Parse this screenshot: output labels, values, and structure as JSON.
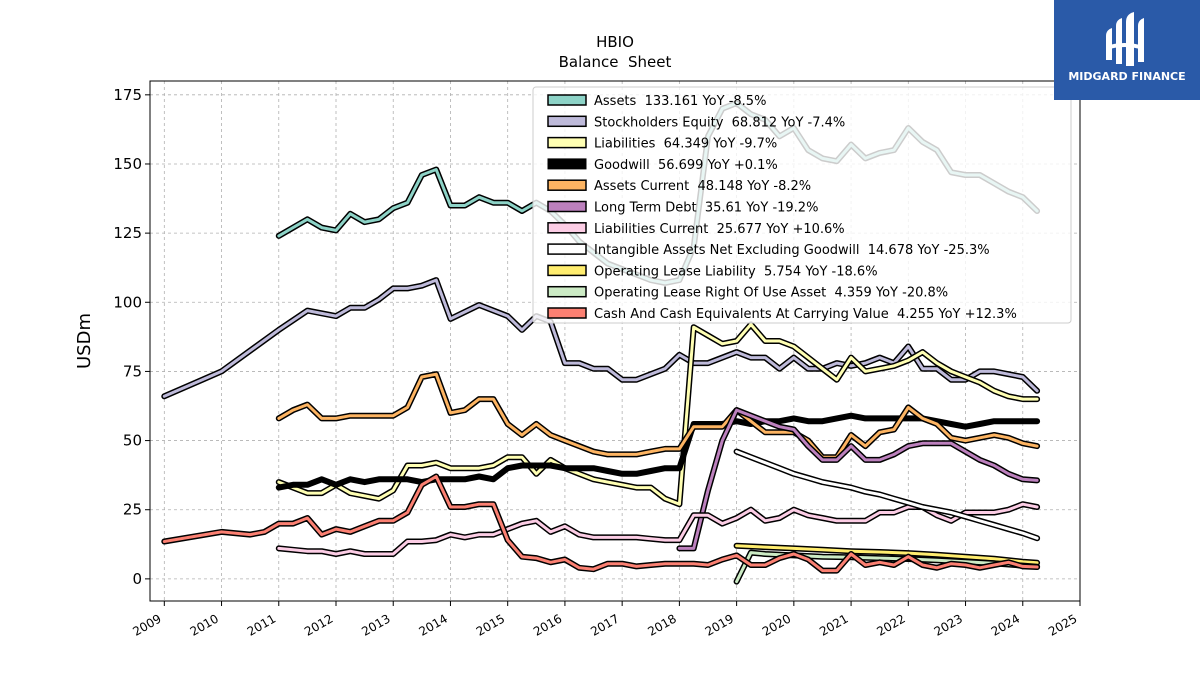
{
  "logo": {
    "text": "MIDGARD FINANCE",
    "color": "#2a5aa8"
  },
  "chart_data": {
    "type": "line",
    "title": "HBIO",
    "subtitle": "Balance  Sheet",
    "xlabel": "",
    "ylabel": "USDm",
    "xlim": [
      2008.75,
      2025
    ],
    "ylim": [
      -8,
      180
    ],
    "grid": true,
    "legend_position": "top-right",
    "x_ticks": [
      "2009",
      "2010",
      "2011",
      "2012",
      "2013",
      "2014",
      "2015",
      "2016",
      "2017",
      "2018",
      "2019",
      "2020",
      "2021",
      "2022",
      "2023",
      "2024",
      "2025"
    ],
    "y_ticks": [
      "0",
      "25",
      "50",
      "75",
      "100",
      "125",
      "150",
      "175"
    ],
    "series": [
      {
        "name": "Assets",
        "legend": "Assets  133.161 YoY -8.5%",
        "color": "#8dd3c7",
        "width": 3,
        "x": [
          2011,
          2011.25,
          2011.5,
          2011.75,
          2012,
          2012.25,
          2012.5,
          2012.75,
          2013,
          2013.25,
          2013.5,
          2013.75,
          2014,
          2014.25,
          2014.5,
          2014.75,
          2015,
          2015.25,
          2015.5,
          2015.75,
          2016,
          2016.25,
          2016.5,
          2016.75,
          2017,
          2017.25,
          2017.5,
          2017.75,
          2018,
          2018.25,
          2018.5,
          2018.75,
          2019,
          2019.25,
          2019.5,
          2019.75,
          2020,
          2020.25,
          2020.5,
          2020.75,
          2021,
          2021.25,
          2021.5,
          2021.75,
          2022,
          2022.25,
          2022.5,
          2022.75,
          2023,
          2023.25,
          2023.5,
          2023.75,
          2024,
          2024.25
        ],
        "y": [
          124,
          127,
          130,
          127,
          126,
          132,
          129,
          130,
          134,
          136,
          146,
          148,
          135,
          135,
          138,
          136,
          136,
          133,
          136,
          133,
          128,
          122,
          118,
          114,
          112,
          110,
          108,
          107,
          108,
          120,
          160,
          170,
          172,
          168,
          166,
          160,
          163,
          155,
          152,
          151,
          157,
          152,
          154,
          155,
          163,
          158,
          155,
          147,
          146,
          146,
          143,
          140,
          138,
          133
        ]
      },
      {
        "name": "Stockholders Equity",
        "legend": "Stockholders Equity  68.812 YoY -7.4%",
        "color": "#bebada",
        "width": 3,
        "x": [
          2009,
          2010,
          2011,
          2011.5,
          2012,
          2012.25,
          2012.5,
          2012.75,
          2013,
          2013.25,
          2013.5,
          2013.75,
          2014,
          2014.5,
          2015,
          2015.25,
          2015.5,
          2015.75,
          2016,
          2016.25,
          2016.5,
          2016.75,
          2017,
          2017.25,
          2017.5,
          2017.75,
          2018,
          2018.25,
          2018.5,
          2018.75,
          2019,
          2019.25,
          2019.5,
          2019.75,
          2020,
          2020.25,
          2020.5,
          2020.75,
          2021,
          2021.25,
          2021.5,
          2021.75,
          2022,
          2022.25,
          2022.5,
          2022.75,
          2023,
          2023.25,
          2023.5,
          2023.75,
          2024,
          2024.25
        ],
        "y": [
          66,
          75,
          90,
          97,
          95,
          98,
          98,
          101,
          105,
          105,
          106,
          108,
          94,
          99,
          95,
          90,
          95,
          93,
          78,
          78,
          76,
          76,
          72,
          72,
          74,
          76,
          81,
          78,
          78,
          80,
          82,
          80,
          80,
          76,
          80,
          76,
          76,
          78,
          77,
          78,
          80,
          78,
          84,
          76,
          76,
          72,
          72,
          75,
          75,
          74,
          73,
          68
        ]
      },
      {
        "name": "Liabilities",
        "legend": "Liabilities  64.349 YoY -9.7%",
        "color": "#ffffb3",
        "width": 3,
        "x": [
          2011,
          2011.25,
          2011.5,
          2011.75,
          2012,
          2012.25,
          2012.5,
          2012.75,
          2013,
          2013.25,
          2013.5,
          2013.75,
          2014,
          2014.25,
          2014.5,
          2014.75,
          2015,
          2015.25,
          2015.5,
          2015.75,
          2016,
          2016.25,
          2016.5,
          2016.75,
          2017,
          2017.25,
          2017.5,
          2017.75,
          2018,
          2018.25,
          2018.5,
          2018.75,
          2019,
          2019.25,
          2019.5,
          2019.75,
          2020,
          2020.25,
          2020.5,
          2020.75,
          2021,
          2021.25,
          2021.5,
          2021.75,
          2022,
          2022.25,
          2022.5,
          2022.75,
          2023,
          2023.25,
          2023.5,
          2023.75,
          2024,
          2024.25
        ],
        "y": [
          35,
          33,
          31,
          31,
          34,
          31,
          30,
          29,
          32,
          41,
          41,
          42,
          40,
          40,
          40,
          41,
          44,
          44,
          38,
          43,
          40,
          38,
          36,
          35,
          34,
          33,
          33,
          29,
          27,
          91,
          88,
          85,
          86,
          92,
          86,
          86,
          84,
          80,
          76,
          72,
          80,
          75,
          76,
          77,
          79,
          82,
          78,
          75,
          73,
          71,
          68,
          66,
          65,
          65
        ]
      },
      {
        "name": "Goodwill",
        "legend": "Goodwill  56.699 YoY +0.1%",
        "color": "#000000",
        "width": 6,
        "x": [
          2011,
          2011.25,
          2011.5,
          2011.75,
          2012,
          2012.25,
          2012.5,
          2012.75,
          2013,
          2013.25,
          2013.5,
          2013.75,
          2014,
          2014.25,
          2014.5,
          2014.75,
          2015,
          2015.25,
          2015.5,
          2015.75,
          2016,
          2016.25,
          2016.5,
          2016.75,
          2017,
          2017.25,
          2017.5,
          2017.75,
          2018,
          2018.25,
          2018.5,
          2018.75,
          2019,
          2019.25,
          2019.5,
          2019.75,
          2020,
          2020.25,
          2020.5,
          2020.75,
          2021,
          2021.25,
          2021.5,
          2021.75,
          2022,
          2022.25,
          2022.5,
          2022.75,
          2023,
          2023.25,
          2023.5,
          2023.75,
          2024,
          2024.25
        ],
        "y": [
          33,
          34,
          34,
          36,
          34,
          36,
          35,
          36,
          36,
          36,
          35,
          36,
          36,
          36,
          37,
          36,
          40,
          41,
          41,
          41,
          40,
          40,
          40,
          39,
          38,
          38,
          39,
          40,
          40,
          56,
          56,
          56,
          57,
          56,
          57,
          57,
          58,
          57,
          57,
          58,
          59,
          58,
          58,
          58,
          58,
          58,
          57,
          56,
          55,
          56,
          57,
          57,
          57,
          57
        ]
      },
      {
        "name": "Assets Current",
        "legend": "Assets Current  48.148 YoY -8.2%",
        "color": "#fdb462",
        "width": 3,
        "x": [
          2011,
          2011.25,
          2011.5,
          2011.75,
          2012,
          2012.25,
          2012.5,
          2012.75,
          2013,
          2013.25,
          2013.5,
          2013.75,
          2014,
          2014.25,
          2014.5,
          2014.75,
          2015,
          2015.25,
          2015.5,
          2015.75,
          2016,
          2016.25,
          2016.5,
          2016.75,
          2017,
          2017.25,
          2017.5,
          2017.75,
          2018,
          2018.25,
          2018.5,
          2018.75,
          2019,
          2019.25,
          2019.5,
          2019.75,
          2020,
          2020.25,
          2020.5,
          2020.75,
          2021,
          2021.25,
          2021.5,
          2021.75,
          2022,
          2022.25,
          2022.5,
          2022.75,
          2023,
          2023.25,
          2023.5,
          2023.75,
          2024,
          2024.25
        ],
        "y": [
          58,
          61,
          63,
          58,
          58,
          59,
          59,
          59,
          59,
          62,
          73,
          74,
          60,
          61,
          65,
          65,
          56,
          52,
          56,
          52,
          50,
          48,
          46,
          45,
          45,
          45,
          46,
          47,
          47,
          55,
          55,
          55,
          61,
          57,
          53,
          53,
          53,
          50,
          44,
          44,
          52,
          48,
          53,
          54,
          62,
          58,
          56,
          51,
          50,
          51,
          52,
          51,
          49,
          48
        ]
      },
      {
        "name": "Long Term Debt",
        "legend": "Long Term Debt  35.61 YoY -19.2%",
        "color": "#bc80bd",
        "width": 3,
        "x": [
          2018,
          2018.25,
          2018.5,
          2018.75,
          2019,
          2019.25,
          2019.5,
          2019.75,
          2020,
          2020.25,
          2020.5,
          2020.75,
          2021,
          2021.25,
          2021.5,
          2021.75,
          2022,
          2022.25,
          2022.5,
          2022.75,
          2023,
          2023.25,
          2023.5,
          2023.75,
          2024,
          2024.25
        ],
        "y": [
          11,
          11,
          32,
          50,
          61,
          59,
          57,
          55,
          54,
          48,
          43,
          43,
          48,
          43,
          43,
          45,
          48,
          49,
          49,
          49,
          46,
          43,
          41,
          38,
          36,
          35.6
        ]
      },
      {
        "name": "Liabilities Current",
        "legend": "Liabilities Current  25.677 YoY +10.6%",
        "color": "#fccde5",
        "width": 3,
        "x": [
          2011,
          2011.25,
          2011.5,
          2011.75,
          2012,
          2012.25,
          2012.5,
          2012.75,
          2013,
          2013.25,
          2013.5,
          2013.75,
          2014,
          2014.25,
          2014.5,
          2014.75,
          2015,
          2015.25,
          2015.5,
          2015.75,
          2016,
          2016.25,
          2016.5,
          2016.75,
          2017,
          2017.25,
          2017.5,
          2017.75,
          2018,
          2018.25,
          2018.5,
          2018.75,
          2019,
          2019.25,
          2019.5,
          2019.75,
          2020,
          2020.25,
          2020.5,
          2020.75,
          2021,
          2021.25,
          2021.5,
          2021.75,
          2022,
          2022.25,
          2022.5,
          2022.75,
          2023,
          2023.25,
          2023.5,
          2023.75,
          2024,
          2024.25
        ],
        "y": [
          11,
          10.5,
          10,
          10,
          9,
          10,
          9,
          9,
          9,
          13.5,
          13.5,
          14,
          16,
          15,
          16,
          16,
          18,
          20,
          21,
          17,
          19,
          16,
          15,
          15,
          15,
          15,
          14.5,
          14,
          14,
          23,
          23,
          20,
          22,
          25,
          21,
          22,
          25,
          23,
          22,
          21,
          21,
          21,
          24,
          24,
          26,
          26,
          23,
          21,
          24,
          24,
          24,
          25,
          27,
          26
        ]
      },
      {
        "name": "Intangible Assets Net Excluding Goodwill",
        "legend": "Intangible Assets Net Excluding Goodwill  14.678 YoY -25.3%",
        "color": "#ffffff",
        "width": 3,
        "x": [
          2019,
          2019.25,
          2019.5,
          2019.75,
          2020,
          2020.25,
          2020.5,
          2020.75,
          2021,
          2021.25,
          2021.5,
          2021.75,
          2022,
          2022.25,
          2022.5,
          2022.75,
          2023,
          2023.25,
          2023.5,
          2023.75,
          2024,
          2024.25
        ],
        "y": [
          46,
          44,
          42,
          40,
          38,
          36.5,
          35,
          34,
          33,
          31.5,
          30.5,
          29,
          27.5,
          26,
          25,
          24,
          22.5,
          21,
          19.5,
          18,
          16.5,
          14.7
        ]
      },
      {
        "name": "Operating Lease Liability",
        "legend": "Operating Lease Liability  5.754 YoY -18.6%",
        "color": "#ffed6f",
        "width": 3,
        "x": [
          2019,
          2019.5,
          2020,
          2020.5,
          2021,
          2021.5,
          2022,
          2022.5,
          2023,
          2023.5,
          2024,
          2024.25
        ],
        "y": [
          12,
          11.5,
          11,
          10.5,
          10,
          9.7,
          9.3,
          8.7,
          8,
          7.3,
          6.2,
          5.8
        ]
      },
      {
        "name": "Operating Lease Right Of Use Asset",
        "legend": "Operating Lease Right Of Use Asset  4.359 YoY -20.8%",
        "color": "#ccebc5",
        "width": 3,
        "x": [
          2019,
          2019.25,
          2019.5,
          2020,
          2020.5,
          2021,
          2021.5,
          2022,
          2022.5,
          2023,
          2023.5,
          2024,
          2024.25
        ],
        "y": [
          -1,
          9.5,
          9,
          8.5,
          8,
          7.8,
          7.5,
          7.2,
          6.7,
          6.2,
          5.6,
          4.8,
          4.4
        ]
      },
      {
        "name": "Cash And Cash Equivalents At Carrying Value",
        "legend": "Cash And Cash Equivalents At Carrying Value  4.255 YoY +12.3%",
        "color": "#fb8072",
        "width": 3,
        "x": [
          2009,
          2010,
          2010.5,
          2010.75,
          2011,
          2011.25,
          2011.5,
          2011.75,
          2012,
          2012.25,
          2012.5,
          2012.75,
          2013,
          2013.25,
          2013.5,
          2013.75,
          2014,
          2014.25,
          2014.5,
          2014.75,
          2015,
          2015.25,
          2015.5,
          2015.75,
          2016,
          2016.25,
          2016.5,
          2016.75,
          2017,
          2017.25,
          2017.5,
          2017.75,
          2018,
          2018.25,
          2018.5,
          2018.75,
          2019,
          2019.25,
          2019.5,
          2019.75,
          2020,
          2020.25,
          2020.5,
          2020.75,
          2021,
          2021.25,
          2021.5,
          2021.75,
          2022,
          2022.25,
          2022.5,
          2022.75,
          2023,
          2023.25,
          2023.5,
          2023.75,
          2024,
          2024.25
        ],
        "y": [
          13.5,
          17,
          16,
          17,
          20,
          20,
          22,
          16,
          18,
          17,
          19,
          21,
          21,
          24,
          34,
          37,
          26,
          26,
          27,
          27,
          14,
          8,
          7.5,
          6,
          7,
          4,
          3.5,
          5.5,
          5.5,
          4.5,
          5,
          5.5,
          5.5,
          5.5,
          5,
          7,
          8.5,
          5,
          5,
          7.5,
          9,
          7,
          3,
          3,
          9,
          5,
          6,
          5,
          8,
          5,
          4,
          5.5,
          5,
          4,
          5,
          6,
          4.5,
          4.3
        ]
      }
    ]
  }
}
